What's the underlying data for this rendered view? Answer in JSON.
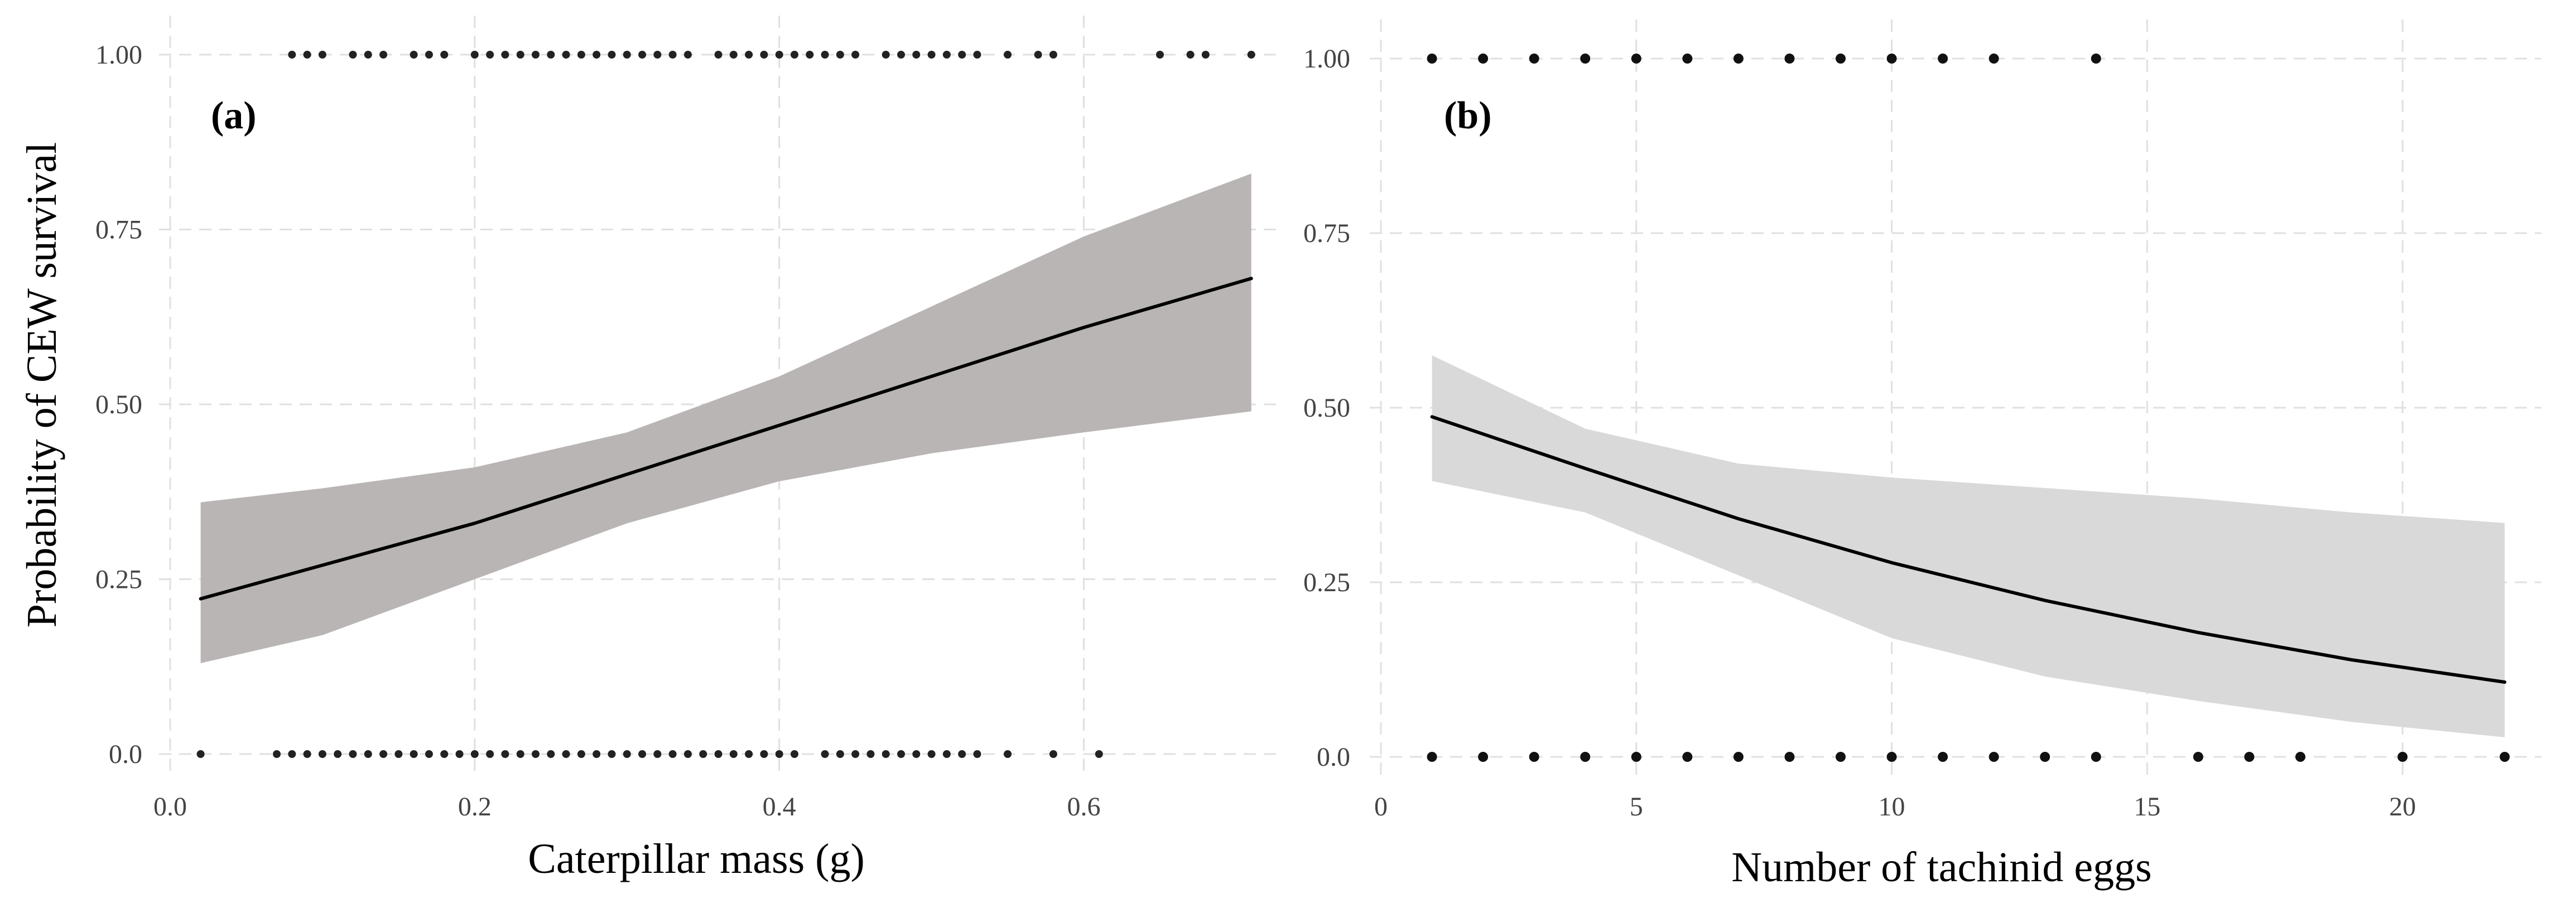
{
  "chart_data": [
    {
      "type": "line",
      "panel_label": "(a)",
      "xlabel": "Caterpillar mass (g)",
      "ylabel": "Probability of CEW survival",
      "xlim": [
        0.0,
        0.72
      ],
      "ylim": [
        0.0,
        1.0
      ],
      "xticks": [
        0.0,
        0.2,
        0.4,
        0.6
      ],
      "xtick_labels": [
        "0.0",
        "0.2",
        "0.4",
        "0.6"
      ],
      "yticks": [
        0.0,
        0.25,
        0.5,
        0.75,
        1.0
      ],
      "ytick_labels": [
        "0.0",
        "0.25",
        "0.50",
        "0.75",
        "1.00"
      ],
      "grid": true,
      "band_color": "#b9b5b5",
      "line_color": "#000000",
      "point_color": "#222222",
      "fit": {
        "x": [
          0.02,
          0.1,
          0.2,
          0.3,
          0.4,
          0.5,
          0.6,
          0.71
        ],
        "y": [
          0.222,
          0.27,
          0.33,
          0.4,
          0.47,
          0.54,
          0.61,
          0.68
        ]
      },
      "ci_upper": {
        "x": [
          0.02,
          0.1,
          0.2,
          0.3,
          0.4,
          0.5,
          0.6,
          0.71
        ],
        "y": [
          0.36,
          0.38,
          0.41,
          0.46,
          0.54,
          0.64,
          0.74,
          0.83
        ]
      },
      "ci_lower": {
        "x": [
          0.02,
          0.1,
          0.2,
          0.3,
          0.4,
          0.5,
          0.6,
          0.71
        ],
        "y": [
          0.13,
          0.17,
          0.25,
          0.33,
          0.39,
          0.43,
          0.46,
          0.49
        ]
      },
      "points_y1": [
        0.08,
        0.09,
        0.1,
        0.12,
        0.13,
        0.14,
        0.16,
        0.17,
        0.18,
        0.2,
        0.21,
        0.22,
        0.23,
        0.24,
        0.25,
        0.26,
        0.27,
        0.28,
        0.29,
        0.3,
        0.31,
        0.32,
        0.33,
        0.34,
        0.36,
        0.37,
        0.38,
        0.39,
        0.4,
        0.41,
        0.42,
        0.43,
        0.44,
        0.45,
        0.47,
        0.48,
        0.49,
        0.5,
        0.51,
        0.52,
        0.53,
        0.55,
        0.57,
        0.58,
        0.65,
        0.67,
        0.68,
        0.71
      ],
      "points_y0": [
        0.02,
        0.07,
        0.08,
        0.09,
        0.1,
        0.11,
        0.12,
        0.13,
        0.14,
        0.15,
        0.16,
        0.17,
        0.18,
        0.19,
        0.2,
        0.21,
        0.22,
        0.23,
        0.24,
        0.25,
        0.26,
        0.27,
        0.28,
        0.29,
        0.3,
        0.31,
        0.32,
        0.33,
        0.34,
        0.35,
        0.36,
        0.37,
        0.38,
        0.39,
        0.4,
        0.41,
        0.43,
        0.44,
        0.45,
        0.46,
        0.47,
        0.48,
        0.49,
        0.5,
        0.51,
        0.52,
        0.53,
        0.55,
        0.58,
        0.61
      ]
    },
    {
      "type": "line",
      "panel_label": "(b)",
      "xlabel": "Number of tachinid eggs",
      "ylabel": "",
      "xlim": [
        0,
        22.5
      ],
      "ylim": [
        0.0,
        1.0
      ],
      "xticks": [
        0,
        5,
        10,
        15,
        20
      ],
      "xtick_labels": [
        "0",
        "5",
        "10",
        "15",
        "20"
      ],
      "yticks": [
        0.0,
        0.25,
        0.5,
        0.75,
        1.0
      ],
      "ytick_labels": [
        "0.0",
        "0.25",
        "0.50",
        "0.75",
        "1.00"
      ],
      "grid": true,
      "band_color": "#d9d9d9",
      "line_color": "#000000",
      "point_color": "#111111",
      "fit": {
        "x": [
          1,
          4,
          7,
          10,
          13,
          16,
          19,
          22
        ],
        "y": [
          0.487,
          0.413,
          0.341,
          0.278,
          0.224,
          0.178,
          0.139,
          0.107
        ]
      },
      "ci_upper": {
        "x": [
          1,
          4,
          7,
          10,
          13,
          16,
          19,
          22
        ],
        "y": [
          0.575,
          0.47,
          0.42,
          0.4,
          0.385,
          0.37,
          0.35,
          0.335
        ]
      },
      "ci_lower": {
        "x": [
          1,
          4,
          7,
          10,
          13,
          16,
          19,
          22
        ],
        "y": [
          0.395,
          0.35,
          0.26,
          0.17,
          0.115,
          0.08,
          0.05,
          0.028
        ]
      },
      "points_y1": [
        1,
        2,
        3,
        4,
        5,
        6,
        7,
        8,
        9,
        10,
        11,
        12,
        14
      ],
      "points_y0": [
        1,
        2,
        3,
        4,
        5,
        6,
        7,
        8,
        9,
        10,
        11,
        12,
        13,
        14,
        16,
        17,
        18,
        20,
        22
      ]
    }
  ]
}
